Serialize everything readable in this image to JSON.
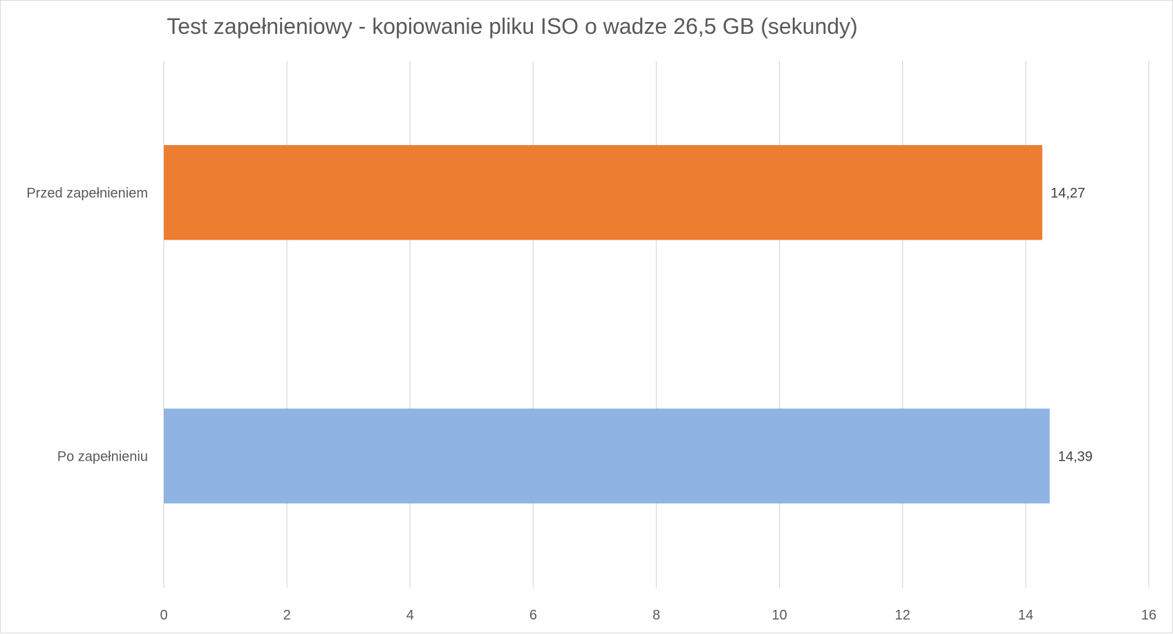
{
  "chart_data": {
    "type": "bar",
    "orientation": "horizontal",
    "title": "Test zapełnieniowy - kopiowanie pliku ISO o wadze 26,5 GB (sekundy)",
    "xlabel": "",
    "ylabel": "",
    "categories": [
      "Przed zapełnieniem",
      "Po zapełnieniu"
    ],
    "values": [
      14.27,
      14.39
    ],
    "value_labels": [
      "14,27",
      "14,39"
    ],
    "bar_colors": [
      "#ED7D31",
      "#8FB3E2"
    ],
    "xlim": [
      0,
      16
    ],
    "x_ticks": [
      0,
      2,
      4,
      6,
      8,
      10,
      12,
      14,
      16
    ],
    "x_tick_labels": [
      "0",
      "2",
      "4",
      "6",
      "8",
      "10",
      "12",
      "14",
      "16"
    ],
    "grid": true,
    "legend": "none",
    "gridline_color": "#d9d9d9"
  }
}
